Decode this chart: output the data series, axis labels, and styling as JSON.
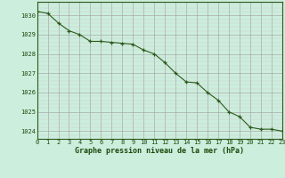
{
  "hours": [
    0,
    1,
    2,
    3,
    4,
    5,
    6,
    7,
    8,
    9,
    10,
    11,
    12,
    13,
    14,
    15,
    16,
    17,
    18,
    19,
    20,
    21,
    22,
    23
  ],
  "pressure": [
    1030.2,
    1030.1,
    1029.6,
    1029.2,
    1029.0,
    1028.65,
    1028.65,
    1028.6,
    1028.55,
    1028.5,
    1028.2,
    1028.0,
    1027.55,
    1027.0,
    1026.55,
    1026.5,
    1026.0,
    1025.6,
    1025.0,
    1024.75,
    1024.2,
    1024.1,
    1024.1,
    1024.0
  ],
  "line_color": "#2d5a1b",
  "marker": "+",
  "bg_color": "#cceedd",
  "grid_major_color": "#aaaaaa",
  "grid_minor_color": "#cccccc",
  "xlabel": "Graphe pression niveau de la mer (hPa)",
  "xlabel_color": "#1a4a0a",
  "ylabel_ticks": [
    1024,
    1025,
    1026,
    1027,
    1028,
    1029,
    1030
  ],
  "ylim": [
    1023.6,
    1030.7
  ],
  "xlim": [
    0,
    23
  ],
  "tick_color": "#1a4a0a",
  "spine_color": "#2d5a1b",
  "tick_fontsize": 5.0,
  "xlabel_fontsize": 6.0
}
